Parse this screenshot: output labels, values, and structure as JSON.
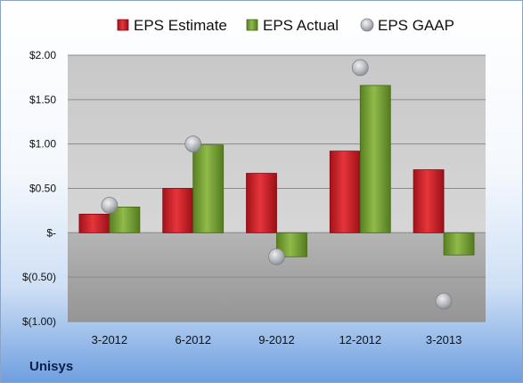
{
  "company": "Unisys",
  "chart_data": {
    "type": "bar",
    "categories": [
      "3-2012",
      "6-2012",
      "9-2012",
      "12-2012",
      "3-2013"
    ],
    "series": [
      {
        "name": "EPS Estimate",
        "type": "bar",
        "color": "#d9242b",
        "values": [
          0.21,
          0.5,
          0.67,
          0.92,
          0.71
        ]
      },
      {
        "name": "EPS Actual",
        "type": "bar",
        "color": "#7aa33a",
        "values": [
          0.29,
          0.99,
          -0.27,
          1.66,
          -0.25
        ]
      },
      {
        "name": "EPS GAAP",
        "type": "scatter",
        "color": "#b8bcc4",
        "values": [
          0.31,
          1.0,
          -0.27,
          1.86,
          -0.77
        ]
      }
    ],
    "ylim": [
      -1.0,
      2.0
    ],
    "yticks": [
      {
        "value": 2.0,
        "label": "$2.00"
      },
      {
        "value": 1.5,
        "label": "$1.50"
      },
      {
        "value": 1.0,
        "label": "$1.00"
      },
      {
        "value": 0.5,
        "label": "$0.50"
      },
      {
        "value": 0.0,
        "label": "$-"
      },
      {
        "value": -0.5,
        "label": "$(0.50)"
      },
      {
        "value": -1.0,
        "label": "$(1.00)"
      }
    ],
    "grid": true,
    "legend_position": "top"
  }
}
